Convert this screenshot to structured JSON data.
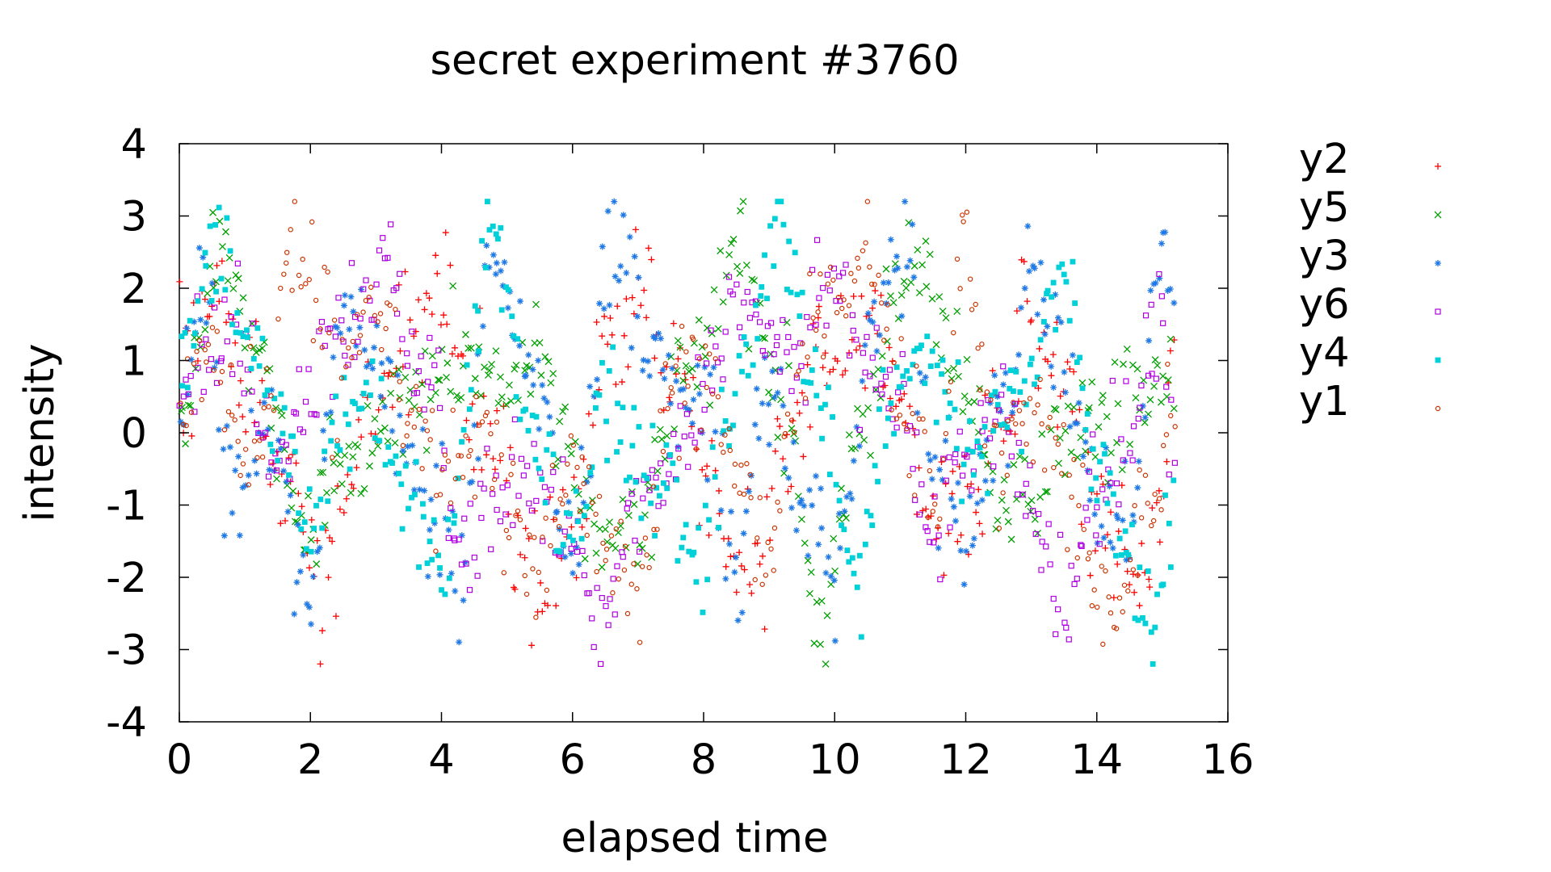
{
  "chart_data": {
    "type": "scatter",
    "title": "secret experiment #3760",
    "xlabel": "elapsed time",
    "ylabel": "intensity",
    "xlim": [
      0,
      16
    ],
    "ylim": [
      -4,
      4
    ],
    "xticks": [
      "0",
      "2",
      "4",
      "6",
      "8",
      "10",
      "12",
      "14",
      "16"
    ],
    "yticks": [
      "-4",
      "-3",
      "-2",
      "-1",
      "0",
      "1",
      "2",
      "3",
      "4"
    ],
    "grid": false,
    "legend_position": "outside-right",
    "x_range_of_data": [
      0,
      15.2
    ],
    "points_per_series": 380,
    "series": [
      {
        "name": "y2",
        "marker": "plus",
        "color": "#ff0000",
        "centers": [
          [
            0.0,
            0.9
          ],
          [
            0.5,
            2.0
          ],
          [
            1.0,
            0.5
          ],
          [
            1.5,
            -0.5
          ],
          [
            2.2,
            -2.0
          ],
          [
            2.8,
            0.2
          ],
          [
            3.5,
            1.0
          ],
          [
            4.0,
            2.0
          ],
          [
            4.5,
            0.5
          ],
          [
            5.0,
            -1.0
          ],
          [
            5.5,
            -2.2
          ],
          [
            6.0,
            -1.0
          ],
          [
            6.5,
            1.0
          ],
          [
            7.0,
            2.0
          ],
          [
            7.5,
            0.8
          ],
          [
            8.0,
            -0.5
          ],
          [
            8.7,
            -2.0
          ],
          [
            9.2,
            0.0
          ],
          [
            10.0,
            1.0
          ],
          [
            10.5,
            1.5
          ],
          [
            11.0,
            0.5
          ],
          [
            11.5,
            -1.5
          ],
          [
            12.0,
            -1.0
          ],
          [
            12.5,
            0.2
          ],
          [
            13.0,
            1.8
          ],
          [
            13.5,
            0.5
          ],
          [
            14.0,
            -1.0
          ],
          [
            14.6,
            -2.2
          ],
          [
            15.2,
            0.5
          ]
        ],
        "spread": 0.85
      },
      {
        "name": "y5",
        "marker": "cross",
        "color": "#00a000",
        "centers": [
          [
            0.0,
            0.2
          ],
          [
            0.6,
            2.6
          ],
          [
            1.2,
            1.0
          ],
          [
            2.0,
            -1.5
          ],
          [
            2.5,
            -0.5
          ],
          [
            3.5,
            0.5
          ],
          [
            4.5,
            0.8
          ],
          [
            5.5,
            0.8
          ],
          [
            6.5,
            -1.5
          ],
          [
            7.0,
            -1.0
          ],
          [
            8.0,
            1.2
          ],
          [
            8.5,
            2.5
          ],
          [
            9.2,
            0.5
          ],
          [
            9.8,
            -2.6
          ],
          [
            10.5,
            0.5
          ],
          [
            11.2,
            2.2
          ],
          [
            11.8,
            1.0
          ],
          [
            12.5,
            -1.0
          ],
          [
            13.0,
            -1.0
          ],
          [
            13.5,
            0.0
          ],
          [
            14.2,
            0.2
          ],
          [
            15.2,
            0.8
          ]
        ],
        "spread": 0.65
      },
      {
        "name": "y3",
        "marker": "star",
        "color": "#1e78e6",
        "centers": [
          [
            0.0,
            0.6
          ],
          [
            0.4,
            2.3
          ],
          [
            0.8,
            -0.8
          ],
          [
            1.5,
            0.0
          ],
          [
            1.9,
            -2.4
          ],
          [
            2.5,
            2.0
          ],
          [
            3.0,
            0.8
          ],
          [
            3.8,
            -1.0
          ],
          [
            4.3,
            -2.0
          ],
          [
            4.8,
            2.2
          ],
          [
            5.5,
            0.5
          ],
          [
            6.0,
            -2.0
          ],
          [
            6.6,
            2.6
          ],
          [
            7.2,
            1.0
          ],
          [
            8.0,
            0.5
          ],
          [
            8.5,
            -1.8
          ],
          [
            9.0,
            1.0
          ],
          [
            9.5,
            -1.0
          ],
          [
            10.0,
            -2.0
          ],
          [
            10.6,
            1.5
          ],
          [
            11.0,
            2.6
          ],
          [
            11.6,
            -0.5
          ],
          [
            12.0,
            -1.5
          ],
          [
            12.5,
            0.0
          ],
          [
            13.0,
            2.2
          ],
          [
            13.5,
            1.0
          ],
          [
            14.0,
            -1.0
          ],
          [
            14.5,
            -1.5
          ],
          [
            15.0,
            2.6
          ],
          [
            15.2,
            1.5
          ]
        ],
        "spread": 0.75
      },
      {
        "name": "y6",
        "marker": "square",
        "color": "#b000e0",
        "centers": [
          [
            0.0,
            0.6
          ],
          [
            0.8,
            1.5
          ],
          [
            1.5,
            -0.2
          ],
          [
            2.4,
            1.5
          ],
          [
            3.2,
            2.2
          ],
          [
            3.8,
            0.5
          ],
          [
            4.3,
            -1.6
          ],
          [
            5.0,
            -0.8
          ],
          [
            5.8,
            -1.0
          ],
          [
            6.4,
            -2.6
          ],
          [
            7.0,
            -1.0
          ],
          [
            7.8,
            0.2
          ],
          [
            8.5,
            2.0
          ],
          [
            9.0,
            1.5
          ],
          [
            9.5,
            1.0
          ],
          [
            10.0,
            2.4
          ],
          [
            10.5,
            1.0
          ],
          [
            11.0,
            0.5
          ],
          [
            11.5,
            -1.5
          ],
          [
            12.0,
            -0.5
          ],
          [
            12.5,
            0.3
          ],
          [
            13.0,
            -1.0
          ],
          [
            13.5,
            -2.5
          ],
          [
            14.0,
            -1.0
          ],
          [
            14.5,
            0.0
          ],
          [
            15.0,
            1.8
          ],
          [
            15.2,
            -0.5
          ]
        ],
        "spread": 0.7
      },
      {
        "name": "y4",
        "marker": "filled-square",
        "color": "#00d0d8",
        "centers": [
          [
            0.0,
            1.0
          ],
          [
            0.5,
            2.5
          ],
          [
            1.0,
            1.5
          ],
          [
            1.5,
            0.0
          ],
          [
            2.0,
            -1.2
          ],
          [
            2.5,
            0.2
          ],
          [
            3.0,
            0.5
          ],
          [
            3.5,
            -1.0
          ],
          [
            4.0,
            -2.0
          ],
          [
            4.8,
            2.8
          ],
          [
            5.3,
            0.0
          ],
          [
            6.0,
            -1.5
          ],
          [
            6.5,
            0.5
          ],
          [
            7.0,
            -0.5
          ],
          [
            8.0,
            -1.5
          ],
          [
            8.5,
            0.8
          ],
          [
            9.2,
            2.6
          ],
          [
            9.8,
            0.5
          ],
          [
            10.3,
            -2.0
          ],
          [
            10.8,
            0.5
          ],
          [
            11.5,
            1.0
          ],
          [
            12.0,
            -0.5
          ],
          [
            12.8,
            0.5
          ],
          [
            13.5,
            2.2
          ],
          [
            14.0,
            -0.5
          ],
          [
            14.8,
            -2.6
          ],
          [
            15.2,
            -1.0
          ]
        ],
        "spread": 0.65
      },
      {
        "name": "y1",
        "marker": "circle",
        "color": "#cc3300",
        "centers": [
          [
            0.0,
            0.4
          ],
          [
            0.5,
            1.0
          ],
          [
            1.0,
            -0.5
          ],
          [
            1.8,
            2.4
          ],
          [
            2.5,
            1.0
          ],
          [
            3.0,
            2.0
          ],
          [
            3.5,
            0.5
          ],
          [
            4.0,
            -0.8
          ],
          [
            4.5,
            0.0
          ],
          [
            5.0,
            -1.2
          ],
          [
            5.5,
            -2.0
          ],
          [
            6.0,
            -0.5
          ],
          [
            6.5,
            -1.5
          ],
          [
            7.0,
            -2.5
          ],
          [
            7.5,
            0.5
          ],
          [
            8.0,
            0.8
          ],
          [
            8.5,
            -0.5
          ],
          [
            9.0,
            -1.5
          ],
          [
            9.5,
            1.0
          ],
          [
            10.0,
            2.0
          ],
          [
            10.5,
            2.6
          ],
          [
            11.0,
            0.5
          ],
          [
            11.5,
            -1.0
          ],
          [
            12.0,
            2.5
          ],
          [
            12.5,
            -0.5
          ],
          [
            13.0,
            0.5
          ],
          [
            13.5,
            -0.5
          ],
          [
            14.2,
            -2.6
          ],
          [
            14.8,
            -1.0
          ],
          [
            15.2,
            0.5
          ]
        ],
        "spread": 0.75
      }
    ]
  }
}
